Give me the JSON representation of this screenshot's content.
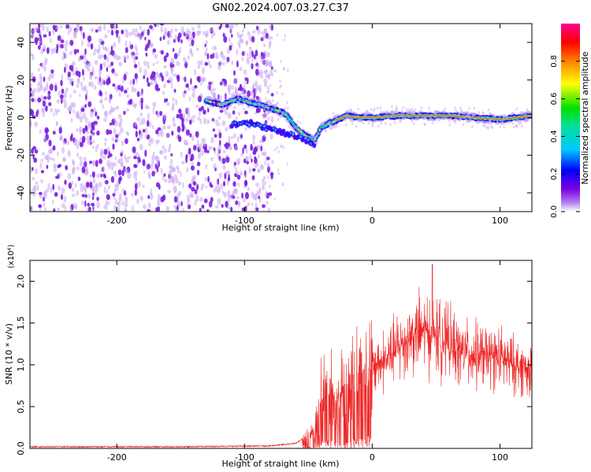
{
  "title": "GN02.2024.007.03.27.C37",
  "colors": {
    "snr_line": "#ee2222",
    "scatter_dim": "#c9a6f2",
    "scatter_strong": "#7a1fe0",
    "axis": "#000000"
  },
  "chart_data": [
    {
      "type": "heatmap",
      "title": "GN02.2024.007.03.27.C37",
      "xlabel": "Height of straight line (km)",
      "ylabel": "Frequency (Hz)",
      "xlim": [
        -268,
        125
      ],
      "ylim": [
        -50,
        50
      ],
      "xticks": [
        -200,
        -100,
        0,
        100
      ],
      "yticks": [
        -40,
        -20,
        0,
        20,
        40
      ],
      "noise_region": {
        "x": [
          -268,
          -78
        ],
        "y": [
          -50,
          50
        ],
        "amplitude": "low (0.0-0.2)"
      },
      "ridge": {
        "description": "frequency track of dominant spectral peak",
        "points": [
          {
            "x": -130,
            "y": 9
          },
          {
            "x": -118,
            "y": 7
          },
          {
            "x": -105,
            "y": 10
          },
          {
            "x": -95,
            "y": 8
          },
          {
            "x": -85,
            "y": 6
          },
          {
            "x": -75,
            "y": 4
          },
          {
            "x": -68,
            "y": 2
          },
          {
            "x": -60,
            "y": -5
          },
          {
            "x": -52,
            "y": -10
          },
          {
            "x": -45,
            "y": -12
          },
          {
            "x": -40,
            "y": -5
          },
          {
            "x": -30,
            "y": -2
          },
          {
            "x": -20,
            "y": 1
          },
          {
            "x": -10,
            "y": 0
          },
          {
            "x": 0,
            "y": 0
          },
          {
            "x": 20,
            "y": 1
          },
          {
            "x": 40,
            "y": 1
          },
          {
            "x": 60,
            "y": 1
          },
          {
            "x": 80,
            "y": 0
          },
          {
            "x": 100,
            "y": -1
          },
          {
            "x": 125,
            "y": 1
          }
        ],
        "lower_branch": [
          {
            "x": -110,
            "y": -4
          },
          {
            "x": -95,
            "y": -3
          },
          {
            "x": -80,
            "y": -6
          },
          {
            "x": -60,
            "y": -10
          },
          {
            "x": -45,
            "y": -14
          }
        ]
      },
      "colorbar": {
        "label": "Normalized spectral amplitude",
        "range": [
          0.0,
          1.0
        ],
        "ticks": [
          "0.0",
          "0.2",
          "0.4",
          "0.6",
          "0.8"
        ],
        "colormap": [
          "#ffffff",
          "#7b00e0",
          "#0000ff",
          "#00e0e0",
          "#00e000",
          "#ffff00",
          "#ff8000",
          "#ff0000",
          "#ff00a0"
        ]
      }
    },
    {
      "type": "line",
      "xlabel": "Height of straight line (km)",
      "ylabel": "SNR (10 * v/v)",
      "yscale_note": "(x10⁴)",
      "xlim": [
        -268,
        125
      ],
      "ylim": [
        0.0,
        2.25
      ],
      "xticks": [
        -200,
        -100,
        0,
        100
      ],
      "yticks": [
        "0.0",
        "0.5",
        "1.0",
        "1.5",
        "2.0"
      ],
      "envelope": [
        {
          "x": -268,
          "y": 0.02
        },
        {
          "x": -150,
          "y": 0.02
        },
        {
          "x": -80,
          "y": 0.03
        },
        {
          "x": -60,
          "y": 0.06
        },
        {
          "x": -45,
          "y": 0.2
        },
        {
          "x": -38,
          "y": 0.7
        },
        {
          "x": -30,
          "y": 0.6
        },
        {
          "x": -20,
          "y": 0.75
        },
        {
          "x": -10,
          "y": 0.9
        },
        {
          "x": 0,
          "y": 1.0
        },
        {
          "x": 10,
          "y": 1.05
        },
        {
          "x": 20,
          "y": 1.2
        },
        {
          "x": 30,
          "y": 1.35
        },
        {
          "x": 40,
          "y": 1.4
        },
        {
          "x": 50,
          "y": 1.35
        },
        {
          "x": 60,
          "y": 1.25
        },
        {
          "x": 70,
          "y": 1.15
        },
        {
          "x": 80,
          "y": 1.12
        },
        {
          "x": 90,
          "y": 1.1
        },
        {
          "x": 100,
          "y": 1.08
        },
        {
          "x": 110,
          "y": 1.0
        },
        {
          "x": 125,
          "y": 0.95
        }
      ],
      "peak": {
        "x": 47,
        "y": 2.2
      }
    }
  ]
}
